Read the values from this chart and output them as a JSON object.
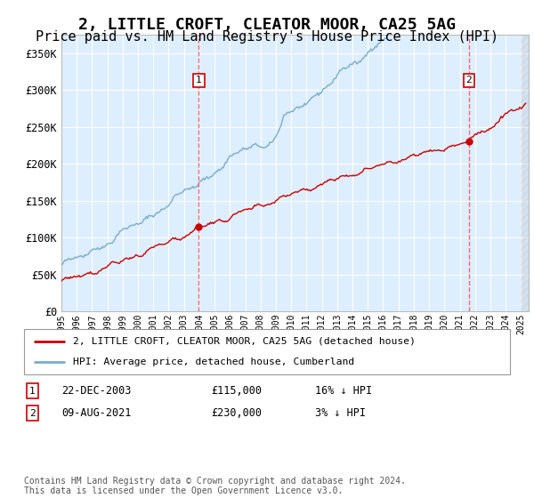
{
  "title": "2, LITTLE CROFT, CLEATOR MOOR, CA25 5AG",
  "subtitle": "Price paid vs. HM Land Registry's House Price Index (HPI)",
  "title_fontsize": 13,
  "subtitle_fontsize": 11,
  "background_color": "#ffffff",
  "plot_bg_color": "#ddeeff",
  "grid_color": "#ffffff",
  "ylabel_vals": [
    0,
    50000,
    100000,
    150000,
    200000,
    250000,
    300000,
    350000
  ],
  "ylabel_labels": [
    "£0",
    "£50K",
    "£100K",
    "£150K",
    "£200K",
    "£250K",
    "£300K",
    "£350K"
  ],
  "xlim_years": [
    1995,
    2025.5
  ],
  "ylim": [
    0,
    375000
  ],
  "sale1_date_x": 2003.97,
  "sale1_price": 115000,
  "sale2_date_x": 2021.6,
  "sale2_price": 230000,
  "legend_line1": "2, LITTLE CROFT, CLEATOR MOOR, CA25 5AG (detached house)",
  "legend_line2": "HPI: Average price, detached house, Cumberland",
  "table_row1_num": "1",
  "table_row1_date": "22-DEC-2003",
  "table_row1_price": "£115,000",
  "table_row1_hpi": "16% ↓ HPI",
  "table_row2_num": "2",
  "table_row2_date": "09-AUG-2021",
  "table_row2_price": "£230,000",
  "table_row2_hpi": "3% ↓ HPI",
  "footer": "Contains HM Land Registry data © Crown copyright and database right 2024.\nThis data is licensed under the Open Government Licence v3.0.",
  "red_line_color": "#cc0000",
  "blue_line_color": "#7aadcc",
  "dashed_line_color": "#ff6666"
}
